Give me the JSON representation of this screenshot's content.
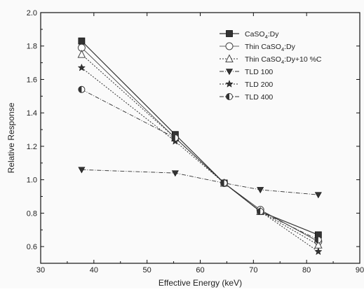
{
  "chart_data": {
    "type": "line",
    "title": "",
    "xlabel": "Effective Energy (keV)",
    "ylabel": "Relative Response",
    "xlim": [
      30,
      90
    ],
    "ylim": [
      0.5,
      2.0
    ],
    "x_ticks": [
      "30",
      "40",
      "50",
      "60",
      "70",
      "80",
      "90"
    ],
    "y_ticks": [
      "0.6",
      "0.8",
      "1.0",
      "1.2",
      "1.4",
      "1.6",
      "1.8",
      "2.0"
    ],
    "grid": false,
    "legend_position": "top-right",
    "series": [
      {
        "name": "CaSO4:Dy",
        "legend_main": "CaSO",
        "legend_sub": "4",
        "legend_rest": ":Dy",
        "marker": "filled-square",
        "line": "solid",
        "x": [
          37.7,
          55.3,
          64.5,
          71.3,
          82.2
        ],
        "y": [
          1.83,
          1.27,
          0.98,
          0.81,
          0.67
        ]
      },
      {
        "name": "Thin CaSO4:Dy",
        "legend_main": "Thin CaSO",
        "legend_sub": "4",
        "legend_rest": ":Dy",
        "marker": "open-circle",
        "line": "solid-thin",
        "x": [
          37.7,
          55.3,
          64.5,
          71.3,
          82.2
        ],
        "y": [
          1.79,
          1.25,
          0.98,
          0.82,
          0.63
        ]
      },
      {
        "name": "Thin CaSO4:Dy+10 %C",
        "legend_main": "Thin CaSO",
        "legend_sub": "4",
        "legend_rest": ":Dy+10 %C",
        "marker": "open-triangle",
        "line": "dotted",
        "x": [
          37.7,
          55.3,
          64.5,
          71.3,
          82.2
        ],
        "y": [
          1.75,
          1.25,
          0.98,
          0.81,
          0.61
        ]
      },
      {
        "name": "TLD 100",
        "legend_main": "TLD 100",
        "legend_sub": "",
        "legend_rest": "",
        "marker": "filled-triangle-down",
        "line": "dashdot",
        "x": [
          37.7,
          55.3,
          64.5,
          71.3,
          82.2
        ],
        "y": [
          1.06,
          1.04,
          0.98,
          0.94,
          0.91
        ]
      },
      {
        "name": "TLD 200",
        "legend_main": "TLD 200",
        "legend_sub": "",
        "legend_rest": "",
        "marker": "star",
        "line": "dotted",
        "x": [
          37.7,
          55.3,
          64.5,
          71.3,
          82.2
        ],
        "y": [
          1.67,
          1.23,
          0.98,
          0.81,
          0.57
        ]
      },
      {
        "name": "TLD 400",
        "legend_main": "TLD 400",
        "legend_sub": "",
        "legend_rest": "",
        "marker": "half-circle",
        "line": "dashdot",
        "x": [
          37.7,
          55.3,
          64.5,
          71.3,
          82.2
        ],
        "y": [
          1.54,
          1.25,
          0.98,
          0.81,
          0.64
        ]
      }
    ]
  }
}
